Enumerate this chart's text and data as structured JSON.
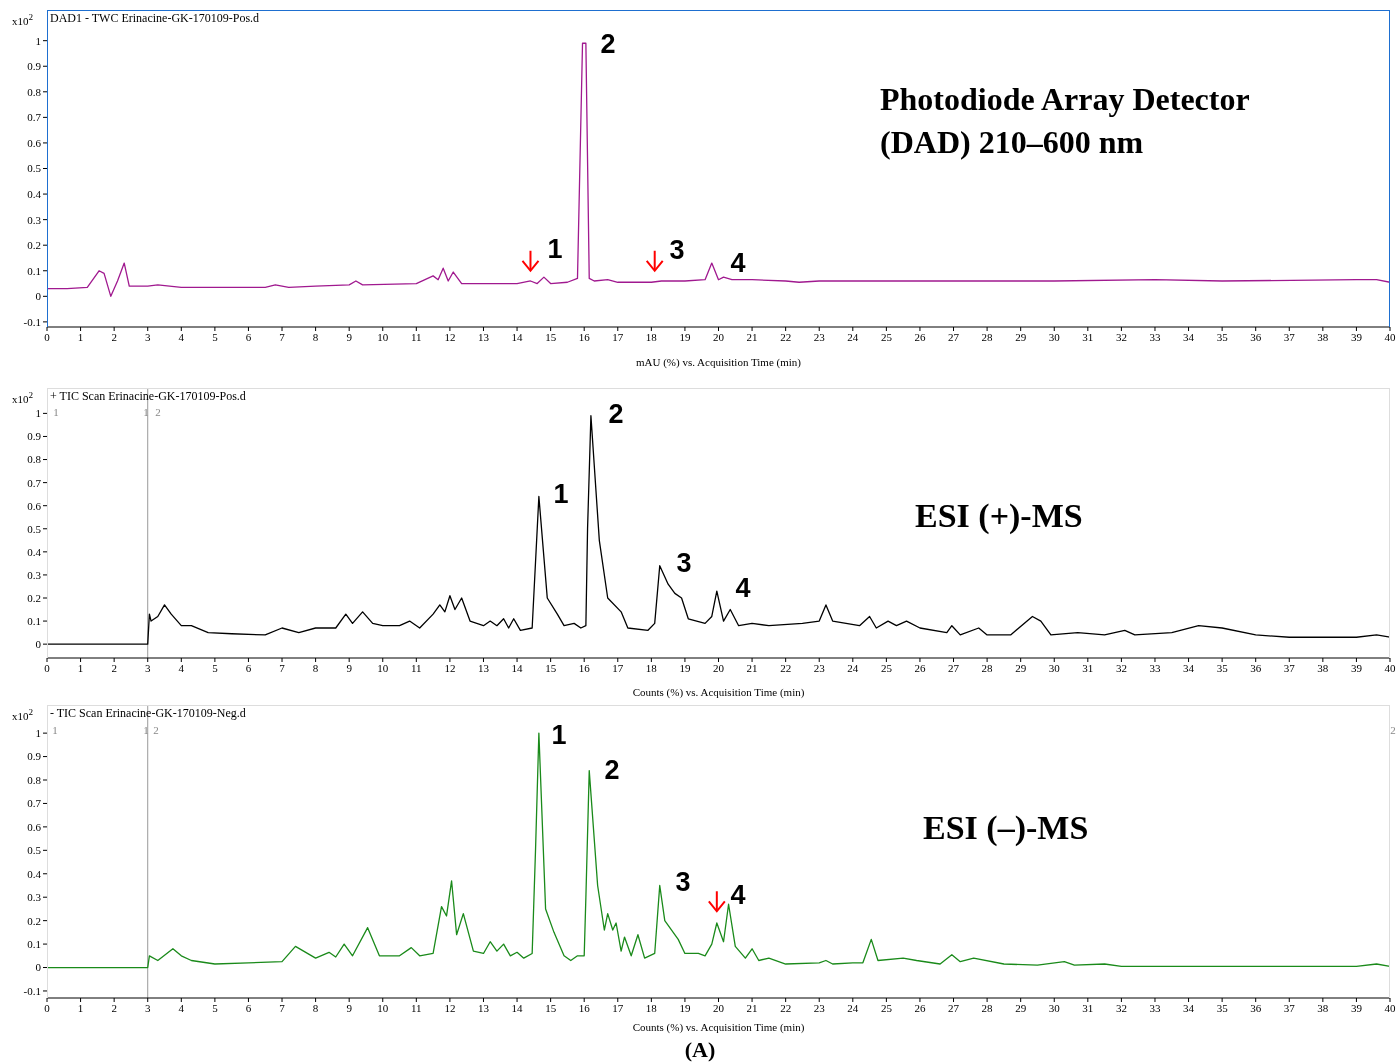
{
  "chart_data": [
    {
      "type": "line",
      "title": "DAD1 - TWC Erinacine-GK-170109-Pos.d",
      "xlabel": "mAU (%) vs. Acquisition Time (min)",
      "ylabel": "x10$^{2}$",
      "x": [
        0,
        0.6,
        1.2,
        1.55,
        1.7,
        1.9,
        2.1,
        2.3,
        2.45,
        3,
        3.3,
        4,
        6.5,
        6.8,
        7.2,
        8,
        9,
        9.2,
        9.4,
        11,
        11.5,
        11.65,
        11.8,
        11.95,
        12.1,
        12.35,
        14,
        14.4,
        14.6,
        14.8,
        15,
        15.5,
        15.8,
        15.95,
        16.05,
        16.15,
        16.3,
        16.7,
        17,
        18,
        18.3,
        19,
        19.6,
        19.8,
        20,
        20.15,
        20.4,
        21,
        22,
        22.4,
        23,
        30,
        33,
        35,
        39,
        39.6,
        40
      ],
      "series": [
        {
          "color": "#a0198f",
          "values": [
            0.03,
            0.03,
            0.035,
            0.1,
            0.09,
            0.0,
            0.06,
            0.13,
            0.04,
            0.04,
            0.045,
            0.035,
            0.035,
            0.045,
            0.035,
            0.04,
            0.045,
            0.06,
            0.045,
            0.05,
            0.08,
            0.065,
            0.11,
            0.06,
            0.095,
            0.05,
            0.05,
            0.06,
            0.05,
            0.075,
            0.05,
            0.055,
            0.07,
            0.99,
            0.99,
            0.07,
            0.06,
            0.065,
            0.055,
            0.055,
            0.06,
            0.06,
            0.065,
            0.13,
            0.065,
            0.075,
            0.065,
            0.065,
            0.06,
            0.055,
            0.06,
            0.06,
            0.065,
            0.06,
            0.065,
            0.065,
            0.055
          ]
        }
      ],
      "xlim": [
        0,
        40
      ],
      "xticks": [
        0,
        1,
        2,
        3,
        4,
        5,
        6,
        7,
        8,
        9,
        10,
        11,
        12,
        13,
        14,
        15,
        16,
        17,
        18,
        19,
        20,
        21,
        22,
        23,
        24,
        25,
        26,
        27,
        28,
        29,
        30,
        31,
        32,
        33,
        34,
        35,
        36,
        37,
        38,
        39,
        40
      ],
      "ylim": [
        -0.12,
        1.12
      ],
      "yticks": [
        -0.1,
        0,
        0.1,
        0.2,
        0.3,
        0.4,
        0.5,
        0.6,
        0.7,
        0.8,
        0.9,
        1
      ],
      "annotations": [
        "Photodiode Array Detector (DAD) 210–600 nm",
        "1",
        "2",
        "3",
        "4"
      ],
      "grid": false,
      "legend": false,
      "marker": "none",
      "line_style": "solid"
    },
    {
      "type": "line",
      "title": "+ TIC Scan Erinacine-GK-170109-Pos.d",
      "xlabel": "Counts (%) vs. Acquisition Time (min)",
      "ylabel": "x10$^{2}$",
      "x": [
        0,
        3,
        3.05,
        3.1,
        3.3,
        3.5,
        3.7,
        4,
        4.3,
        4.8,
        5.5,
        6.5,
        7,
        7.5,
        8,
        8.3,
        8.6,
        8.9,
        9.1,
        9.4,
        9.7,
        10,
        10.5,
        10.8,
        11.1,
        11.5,
        11.7,
        11.85,
        12,
        12.15,
        12.35,
        12.6,
        13,
        13.2,
        13.4,
        13.6,
        13.75,
        13.9,
        14.1,
        14.45,
        14.65,
        14.9,
        15.2,
        15.4,
        15.7,
        15.9,
        16.05,
        16.1,
        16.2,
        16.45,
        16.7,
        17.1,
        17.3,
        17.9,
        18.1,
        18.25,
        18.5,
        18.7,
        18.9,
        19.1,
        19.6,
        19.8,
        19.95,
        20.15,
        20.35,
        20.6,
        21,
        21.5,
        22.5,
        23,
        23.2,
        23.4,
        24.2,
        24.5,
        24.7,
        25.05,
        25.3,
        25.6,
        26,
        26.8,
        26.95,
        27.2,
        27.75,
        28,
        28.7,
        29.35,
        29.6,
        29.9,
        30.7,
        31.5,
        32.1,
        32.4,
        33.5,
        34.3,
        35,
        36,
        37,
        39,
        39.6,
        40
      ],
      "series": [
        {
          "color": "#000000",
          "values": [
            0,
            0,
            0.13,
            0.1,
            0.12,
            0.17,
            0.13,
            0.08,
            0.08,
            0.05,
            0.045,
            0.04,
            0.07,
            0.05,
            0.07,
            0.07,
            0.07,
            0.13,
            0.09,
            0.14,
            0.09,
            0.08,
            0.08,
            0.1,
            0.07,
            0.13,
            0.17,
            0.14,
            0.21,
            0.15,
            0.2,
            0.1,
            0.08,
            0.1,
            0.08,
            0.11,
            0.07,
            0.11,
            0.06,
            0.07,
            0.64,
            0.2,
            0.13,
            0.08,
            0.09,
            0.07,
            0.08,
            0.5,
            0.99,
            0.45,
            0.2,
            0.14,
            0.07,
            0.06,
            0.09,
            0.34,
            0.26,
            0.22,
            0.2,
            0.11,
            0.09,
            0.12,
            0.23,
            0.1,
            0.15,
            0.08,
            0.09,
            0.08,
            0.09,
            0.1,
            0.17,
            0.1,
            0.08,
            0.12,
            0.07,
            0.1,
            0.08,
            0.1,
            0.07,
            0.05,
            0.08,
            0.04,
            0.07,
            0.04,
            0.04,
            0.12,
            0.1,
            0.04,
            0.05,
            0.04,
            0.06,
            0.04,
            0.05,
            0.08,
            0.07,
            0.04,
            0.03,
            0.03,
            0.04,
            0.03
          ]
        }
      ],
      "xlim": [
        0,
        40
      ],
      "xticks": [
        0,
        1,
        2,
        3,
        4,
        5,
        6,
        7,
        8,
        9,
        10,
        11,
        12,
        13,
        14,
        15,
        16,
        17,
        18,
        19,
        20,
        21,
        22,
        23,
        24,
        25,
        26,
        27,
        28,
        29,
        30,
        31,
        32,
        33,
        34,
        35,
        36,
        37,
        38,
        39,
        40
      ],
      "ylim": [
        -0.06,
        1.11
      ],
      "yticks": [
        0,
        0.1,
        0.2,
        0.3,
        0.4,
        0.5,
        0.6,
        0.7,
        0.8,
        0.9,
        1
      ],
      "ref_lines": [
        {
          "axis": "x",
          "value": 3,
          "color": "#999999"
        }
      ],
      "annotations": [
        "ESI (+)-MS",
        "1",
        "2",
        "3",
        "4",
        "1",
        "1",
        "2"
      ],
      "grid": false,
      "legend": false,
      "marker": "none",
      "line_style": "solid"
    },
    {
      "type": "line",
      "title": "- TIC Scan Erinacine-GK-170109-Neg.d",
      "xlabel": "Counts (%) vs. Acquisition Time (min)",
      "ylabel": "x10$^{2}$",
      "x": [
        0,
        3,
        3.05,
        3.3,
        3.75,
        4,
        4.3,
        5,
        6,
        7,
        7.4,
        8,
        8.4,
        8.6,
        8.85,
        9.1,
        9.55,
        9.9,
        10.5,
        10.85,
        11.1,
        11.5,
        11.75,
        11.9,
        12.05,
        12.2,
        12.4,
        12.7,
        13,
        13.2,
        13.4,
        13.6,
        13.8,
        14,
        14.2,
        14.45,
        14.55,
        14.65,
        14.85,
        15.1,
        15.4,
        15.6,
        15.8,
        16,
        16.05,
        16.15,
        16.4,
        16.6,
        16.7,
        16.85,
        16.95,
        17.1,
        17.2,
        17.4,
        17.6,
        17.8,
        18.1,
        18.25,
        18.4,
        18.8,
        19,
        19.4,
        19.6,
        19.8,
        19.95,
        20.15,
        20.3,
        20.5,
        20.8,
        21,
        21.2,
        21.5,
        22,
        23,
        23.2,
        23.4,
        24,
        24.3,
        24.55,
        24.75,
        25.5,
        25.9,
        26.6,
        26.95,
        27.2,
        27.6,
        28.5,
        29.5,
        30.3,
        30.6,
        31.5,
        32,
        39,
        39.6,
        40
      ],
      "series": [
        {
          "color": "#1a8a1a",
          "values": [
            0,
            0,
            0.05,
            0.03,
            0.08,
            0.05,
            0.03,
            0.015,
            0.02,
            0.025,
            0.09,
            0.04,
            0.065,
            0.045,
            0.1,
            0.05,
            0.17,
            0.05,
            0.05,
            0.085,
            0.05,
            0.06,
            0.26,
            0.22,
            0.37,
            0.14,
            0.23,
            0.07,
            0.06,
            0.11,
            0.07,
            0.1,
            0.05,
            0.065,
            0.04,
            0.06,
            0.5,
            1.0,
            0.25,
            0.15,
            0.05,
            0.03,
            0.05,
            0.05,
            0.3,
            0.84,
            0.35,
            0.16,
            0.23,
            0.16,
            0.19,
            0.07,
            0.13,
            0.05,
            0.14,
            0.04,
            0.06,
            0.35,
            0.2,
            0.12,
            0.06,
            0.06,
            0.05,
            0.1,
            0.19,
            0.11,
            0.27,
            0.09,
            0.04,
            0.08,
            0.03,
            0.04,
            0.015,
            0.02,
            0.03,
            0.015,
            0.02,
            0.02,
            0.12,
            0.03,
            0.04,
            0.03,
            0.015,
            0.055,
            0.025,
            0.04,
            0.015,
            0.01,
            0.025,
            0.01,
            0.015,
            0.005,
            0.005,
            0.015,
            0.005
          ]
        }
      ],
      "xlim": [
        0,
        40
      ],
      "xticks": [
        0,
        1,
        2,
        3,
        4,
        5,
        6,
        7,
        8,
        9,
        10,
        11,
        12,
        13,
        14,
        15,
        16,
        17,
        18,
        19,
        20,
        21,
        22,
        23,
        24,
        25,
        26,
        27,
        28,
        29,
        30,
        31,
        32,
        33,
        34,
        35,
        36,
        37,
        38,
        39,
        40
      ],
      "ylim": [
        -0.13,
        1.12
      ],
      "yticks": [
        -0.1,
        0,
        0.1,
        0.2,
        0.3,
        0.4,
        0.5,
        0.6,
        0.7,
        0.8,
        0.9,
        1
      ],
      "ref_lines": [
        {
          "axis": "x",
          "value": 3,
          "color": "#999999"
        }
      ],
      "annotations": [
        "ESI (–)-MS",
        "1",
        "2",
        "3",
        "4",
        "1",
        "1",
        "2",
        "2",
        "(A)"
      ],
      "grid": false,
      "legend": false,
      "marker": "none",
      "line_style": "solid"
    }
  ]
}
